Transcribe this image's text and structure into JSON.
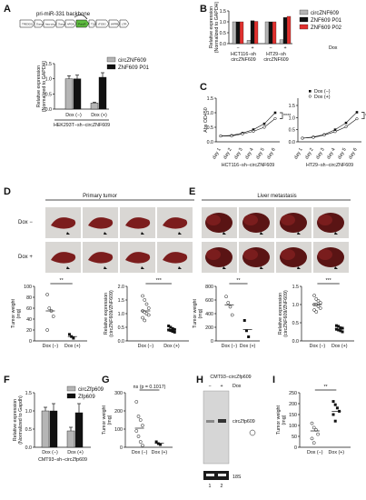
{
  "colors": {
    "grey": "#b5b5b5",
    "black": "#111111",
    "red": "#e0312f"
  },
  "panels": {
    "A": "A",
    "B": "B",
    "C": "C",
    "D": "D",
    "E": "E",
    "F": "F",
    "G": "G",
    "H": "H",
    "I": "I"
  },
  "construct": {
    "backbone": "pri-miR-331 backbone",
    "segments": [
      "TRE3GS",
      "5'arm",
      "hsa-circ-0006",
      "3'arm",
      "hPGK",
      "PuroR",
      "T2A",
      "tTS3G",
      "WPRE",
      "LTR"
    ]
  },
  "chart_data": [
    {
      "panel": "A",
      "type": "bar",
      "categories": [
        "Dox (−)",
        "Dox (+)"
      ],
      "series": [
        {
          "name": "circZNF609",
          "values": [
            1.0,
            0.2
          ],
          "err": [
            0.1,
            0.03
          ]
        },
        {
          "name": "ZNF609 P01",
          "values": [
            1.0,
            1.05
          ],
          "err": [
            0.12,
            0.15
          ]
        }
      ],
      "ylabel": "Relative expression (Normalized to GAPDH)",
      "xlabel": "HEK293T−sh−circZNF609",
      "ylim": [
        0,
        1.5
      ],
      "yticks": [
        "0.0",
        "0.5",
        "1.0",
        "1.5"
      ]
    },
    {
      "panel": "B",
      "type": "bar",
      "groups": [
        "HCT116−sh circZNF609",
        "HT29−sh circZNF609"
      ],
      "categories": [
        "−",
        "+",
        "−",
        "+"
      ],
      "series": [
        {
          "name": "circZNF609",
          "values": [
            1.0,
            0.15,
            1.0,
            0.18
          ]
        },
        {
          "name": "ZNF609 P01",
          "values": [
            1.0,
            1.05,
            1.0,
            1.2
          ]
        },
        {
          "name": "ZNF609 P02",
          "values": [
            1.0,
            1.02,
            1.0,
            1.25
          ]
        }
      ],
      "legend_extra": "Dox",
      "ylabel": "Relative expression (Normalized to GAPDH)",
      "ylim": [
        0,
        1.5
      ],
      "yticks": [
        "0.0",
        "0.5",
        "1.0",
        "1.5"
      ]
    },
    {
      "panel": "C",
      "type": "line",
      "charts": [
        {
          "title": "HCT116−sh−circZNF609",
          "x": [
            "day 1",
            "day 2",
            "day 3",
            "day 4",
            "day 5",
            "day 6"
          ],
          "series": [
            {
              "name": "Dox (−)",
              "values": [
                0.2,
                0.22,
                0.3,
                0.42,
                0.62,
                1.0
              ]
            },
            {
              "name": "Dox (+)",
              "values": [
                0.2,
                0.2,
                0.27,
                0.36,
                0.5,
                0.8
              ]
            }
          ],
          "sig": "****",
          "ylim": [
            0,
            1.5
          ],
          "yticks": [
            "0.0",
            "0.5",
            "1.0",
            "1.5"
          ]
        },
        {
          "title": "HT29−sh−circZNF609",
          "x": [
            "day 1",
            "day 2",
            "day 3",
            "day 4",
            "day 5",
            "day 6"
          ],
          "series": [
            {
              "name": "Dox (−)",
              "values": [
                0.15,
                0.2,
                0.3,
                0.5,
                0.78,
                1.22
              ]
            },
            {
              "name": "Dox (+)",
              "values": [
                0.15,
                0.18,
                0.28,
                0.42,
                0.62,
                0.95
              ]
            }
          ],
          "sig": "*",
          "ylim": [
            0,
            1.8
          ],
          "yticks": [
            "0.0",
            "0.5",
            "1.0",
            "1.5"
          ]
        }
      ],
      "ylabel": "Abs OD450"
    },
    {
      "panel": "D",
      "type": "scatter",
      "title": "Primary tumor",
      "rows": [
        "Dox −",
        "Dox +"
      ],
      "charts": [
        {
          "ylabel": "Tumor weight (mg)",
          "categories": [
            "Dox (−)",
            "Dox (+)"
          ],
          "sig": "**",
          "ylim": [
            0,
            100
          ],
          "yticks": [
            "0",
            "20",
            "40",
            "60",
            "80",
            "100"
          ],
          "groups": [
            [
              85,
              60,
              55,
              45,
              20
            ],
            [
              12,
              8,
              5
            ]
          ],
          "means": [
            55,
            8
          ]
        },
        {
          "ylabel": "Relative expression (circZNF609/ZNF609)",
          "categories": [
            "Dox (−)",
            "Dox (+)"
          ],
          "sig": "***",
          "ylim": [
            0,
            2.0
          ],
          "yticks": [
            "0.0",
            "0.5",
            "1.0",
            "1.5",
            "2.0"
          ],
          "groups": [
            [
              1.65,
              1.5,
              1.35,
              1.2,
              1.1,
              1.05,
              1.0,
              0.95,
              0.85,
              0.75
            ],
            [
              0.55,
              0.5,
              0.45,
              0.42,
              0.4,
              0.38,
              0.35,
              0.32
            ]
          ],
          "means": [
            1.1,
            0.42
          ]
        }
      ]
    },
    {
      "panel": "E",
      "type": "scatter",
      "title": "Liver metastasis",
      "charts": [
        {
          "ylabel": "Tumor weight (mg)",
          "categories": [
            "Dox (−)",
            "Dox (+)"
          ],
          "sig": "**",
          "ylim": [
            0,
            800
          ],
          "yticks": [
            "0",
            "200",
            "400",
            "600",
            "800"
          ],
          "groups": [
            [
              650,
              560,
              500,
              380
            ],
            [
              300,
              150,
              60
            ]
          ],
          "means": [
            530,
            165
          ]
        },
        {
          "ylabel": "Relative expression (circZNF609/ZNF609)",
          "categories": [
            "Dox (−)",
            "Dox (+)"
          ],
          "sig": "***",
          "ylim": [
            0,
            1.5
          ],
          "yticks": [
            "0.0",
            "0.5",
            "1.0",
            "1.5"
          ],
          "groups": [
            [
              1.25,
              1.15,
              1.1,
              1.05,
              1.0,
              1.0,
              0.95,
              0.9,
              0.85,
              0.8
            ],
            [
              0.42,
              0.4,
              0.36,
              0.35,
              0.32,
              0.3,
              0.28,
              0.25
            ]
          ],
          "means": [
            1.0,
            0.33
          ]
        }
      ]
    },
    {
      "panel": "F",
      "type": "bar",
      "categories": [
        "Dox (−)",
        "Dox (+)"
      ],
      "series": [
        {
          "name": "circZfp609",
          "values": [
            1.0,
            0.45
          ],
          "err": [
            0.1,
            0.1
          ]
        },
        {
          "name": "Zfp609",
          "values": [
            1.0,
            0.95
          ],
          "err": [
            0.2,
            0.25
          ]
        }
      ],
      "ylabel": "Relative expression (Normalized to Gapdh)",
      "xlabel": "CMT93−sh−circZfp609",
      "ylim": [
        0,
        1.5
      ],
      "yticks": [
        "0.0",
        "0.5",
        "1.0",
        "1.5"
      ]
    },
    {
      "panel": "G",
      "type": "scatter",
      "ylabel": "Tumor weight (mg)",
      "categories": [
        "Dox (−)",
        "Dox (+)"
      ],
      "sig": "ns (p = 0.1017)",
      "ylim": [
        0,
        300
      ],
      "yticks": [
        "0",
        "100",
        "200",
        "300"
      ],
      "groups": [
        [
          250,
          170,
          150,
          120,
          90,
          60,
          30,
          10
        ],
        [
          30,
          20,
          15
        ]
      ],
      "means": [
        105,
        22
      ]
    },
    {
      "panel": "H",
      "type": "table",
      "title": "CMT93−circZfp609",
      "lanes": [
        "−",
        "+"
      ],
      "lane_numbers": [
        "1",
        "2"
      ],
      "treatment": "Dox",
      "labels": [
        "circZfp609",
        "18S"
      ]
    },
    {
      "panel": "I",
      "type": "scatter",
      "ylabel": "Tumor weight (mg)",
      "categories": [
        "Dox (−)",
        "Dox (+)"
      ],
      "sig": "**",
      "ylim": [
        0,
        250
      ],
      "yticks": [
        "0",
        "50",
        "100",
        "150",
        "200",
        "250"
      ],
      "groups": [
        [
          110,
          90,
          80,
          60,
          40,
          20
        ],
        [
          210,
          195,
          180,
          165,
          150,
          120
        ]
      ],
      "means": [
        75,
        165
      ]
    }
  ]
}
